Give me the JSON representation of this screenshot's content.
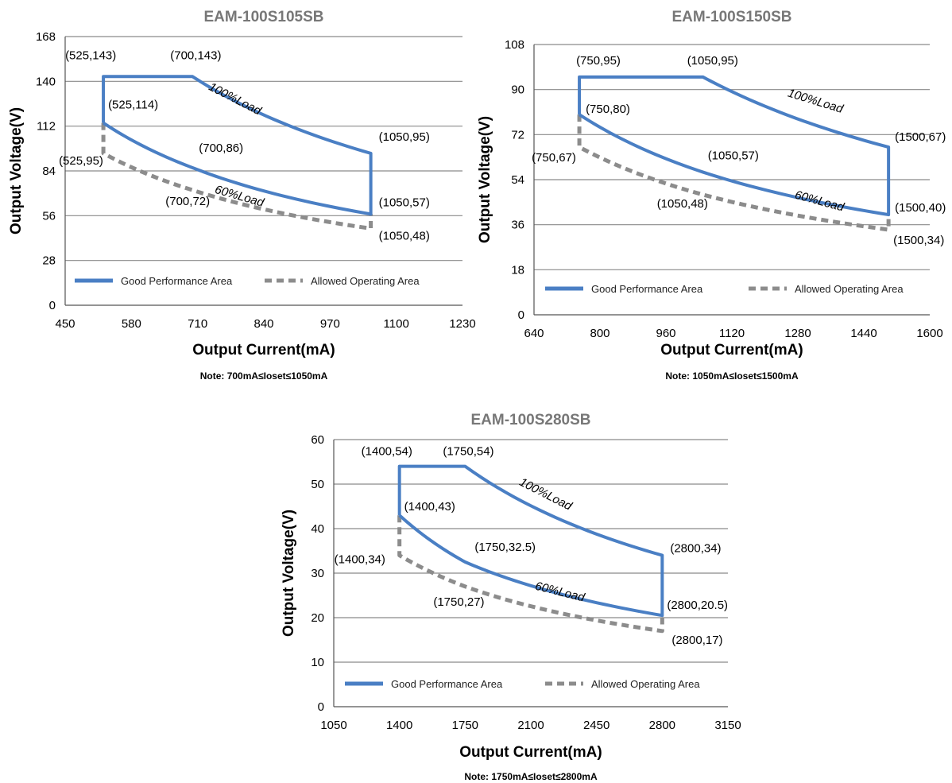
{
  "colors": {
    "good": "#4a7fc4",
    "allowed": "#8c8c8c",
    "grid": "#8a8a8a",
    "axis": "#555555"
  },
  "chart_data": [
    {
      "type": "line",
      "title": "EAM-100S105SB",
      "xlabel": "Output Current(mA)",
      "ylabel": "Output Voltage(V)",
      "note": "Note:  700mA≤Ioset≤1050mA",
      "xlim": [
        450,
        1230
      ],
      "ylim": [
        0,
        168
      ],
      "xticks": [
        450,
        580,
        710,
        840,
        970,
        1100,
        1230
      ],
      "yticks": [
        0,
        28,
        56,
        84,
        112,
        140,
        168
      ],
      "grid": true,
      "legend": {
        "position": "bottom-inside",
        "entries": [
          "Good Performance Area",
          "Allowed Operating Area"
        ]
      },
      "series": [
        {
          "name": "Good Performance Area",
          "style": "solid",
          "points": [
            [
              525,
              114
            ],
            [
              525,
              143
            ],
            [
              700,
              143
            ],
            [
              1050,
              95
            ],
            [
              1050,
              57
            ],
            [
              700,
              86
            ],
            [
              525,
              114
            ]
          ]
        },
        {
          "name": "Allowed Operating Area",
          "style": "dashed",
          "points": [
            [
              525,
              114
            ],
            [
              525,
              95
            ],
            [
              700,
              72
            ],
            [
              1050,
              48
            ],
            [
              1050,
              57
            ]
          ]
        }
      ],
      "annotations": [
        {
          "text": "(525,143)",
          "x": 525,
          "y": 143
        },
        {
          "text": "(700,143)",
          "x": 700,
          "y": 143
        },
        {
          "text": "(525,114)",
          "x": 525,
          "y": 114
        },
        {
          "text": "(700,86)",
          "x": 700,
          "y": 86
        },
        {
          "text": "(525,95)",
          "x": 525,
          "y": 95
        },
        {
          "text": "(700,72)",
          "x": 700,
          "y": 72
        },
        {
          "text": "(1050,95)",
          "x": 1050,
          "y": 95
        },
        {
          "text": "(1050,57)",
          "x": 1050,
          "y": 57
        },
        {
          "text": "(1050,48)",
          "x": 1050,
          "y": 48
        }
      ],
      "curve_labels": [
        "100%Load",
        "60%Load"
      ]
    },
    {
      "type": "line",
      "title": "EAM-100S150SB",
      "xlabel": "Output Current(mA)",
      "ylabel": "Output Voltage(V)",
      "note": "Note:  1050mA≤Ioset≤1500mA",
      "xlim": [
        640,
        1600
      ],
      "ylim": [
        0,
        108
      ],
      "xticks": [
        640,
        800,
        960,
        1120,
        1280,
        1440,
        1600
      ],
      "yticks": [
        0,
        18,
        36,
        54,
        72,
        90,
        108
      ],
      "grid": true,
      "legend": {
        "position": "bottom-inside",
        "entries": [
          "Good Performance Area",
          "Allowed Operating Area"
        ]
      },
      "series": [
        {
          "name": "Good Performance Area",
          "style": "solid",
          "points": [
            [
              750,
              80
            ],
            [
              750,
              95
            ],
            [
              1050,
              95
            ],
            [
              1500,
              67
            ],
            [
              1500,
              40
            ],
            [
              1050,
              57
            ],
            [
              750,
              80
            ]
          ]
        },
        {
          "name": "Allowed Operating Area",
          "style": "dashed",
          "points": [
            [
              750,
              80
            ],
            [
              750,
              67
            ],
            [
              1050,
              48
            ],
            [
              1500,
              34
            ],
            [
              1500,
              40
            ]
          ]
        }
      ],
      "annotations": [
        {
          "text": "(750,95)",
          "x": 750,
          "y": 95
        },
        {
          "text": "(1050,95)",
          "x": 1050,
          "y": 95
        },
        {
          "text": "(750,80)",
          "x": 750,
          "y": 80
        },
        {
          "text": "(750,67)",
          "x": 750,
          "y": 67
        },
        {
          "text": "(1050,57)",
          "x": 1050,
          "y": 57
        },
        {
          "text": "(1050,48)",
          "x": 1050,
          "y": 48
        },
        {
          "text": "(1500,67)",
          "x": 1500,
          "y": 67
        },
        {
          "text": "(1500,40)",
          "x": 1500,
          "y": 40
        },
        {
          "text": "(1500,34)",
          "x": 1500,
          "y": 34
        }
      ],
      "curve_labels": [
        "100%Load",
        "60%Load"
      ]
    },
    {
      "type": "line",
      "title": "EAM-100S280SB",
      "xlabel": "Output Current(mA)",
      "ylabel": "Output Voltage(V)",
      "note": "Note:  1750mA≤Ioset≤2800mA",
      "xlim": [
        1050,
        3150
      ],
      "ylim": [
        0,
        60
      ],
      "xticks": [
        1050,
        1400,
        1750,
        2100,
        2450,
        2800,
        3150
      ],
      "yticks": [
        0,
        10,
        20,
        30,
        40,
        50,
        60
      ],
      "grid": true,
      "legend": {
        "position": "bottom-inside",
        "entries": [
          "Good Performance Area",
          "Allowed Operating Area"
        ]
      },
      "series": [
        {
          "name": "Good Performance Area",
          "style": "solid",
          "points": [
            [
              1400,
              43
            ],
            [
              1400,
              54
            ],
            [
              1750,
              54
            ],
            [
              2800,
              34
            ],
            [
              2800,
              20.5
            ],
            [
              1750,
              32.5
            ],
            [
              1400,
              43
            ]
          ]
        },
        {
          "name": "Allowed Operating Area",
          "style": "dashed",
          "points": [
            [
              1400,
              43
            ],
            [
              1400,
              34
            ],
            [
              1750,
              27
            ],
            [
              2800,
              17
            ],
            [
              2800,
              20.5
            ]
          ]
        }
      ],
      "annotations": [
        {
          "text": "(1400,54)",
          "x": 1400,
          "y": 54
        },
        {
          "text": "(1750,54)",
          "x": 1750,
          "y": 54
        },
        {
          "text": "(1400,43)",
          "x": 1400,
          "y": 43
        },
        {
          "text": "(1400,34)",
          "x": 1400,
          "y": 34
        },
        {
          "text": "(1750,32.5)",
          "x": 1750,
          "y": 32.5
        },
        {
          "text": "(1750,27)",
          "x": 1750,
          "y": 27
        },
        {
          "text": "(2800,34)",
          "x": 2800,
          "y": 34
        },
        {
          "text": "(2800,20.5)",
          "x": 2800,
          "y": 20.5
        },
        {
          "text": "(2800,17)",
          "x": 2800,
          "y": 17
        }
      ],
      "curve_labels": [
        "100%Load",
        "60%Load"
      ]
    }
  ]
}
